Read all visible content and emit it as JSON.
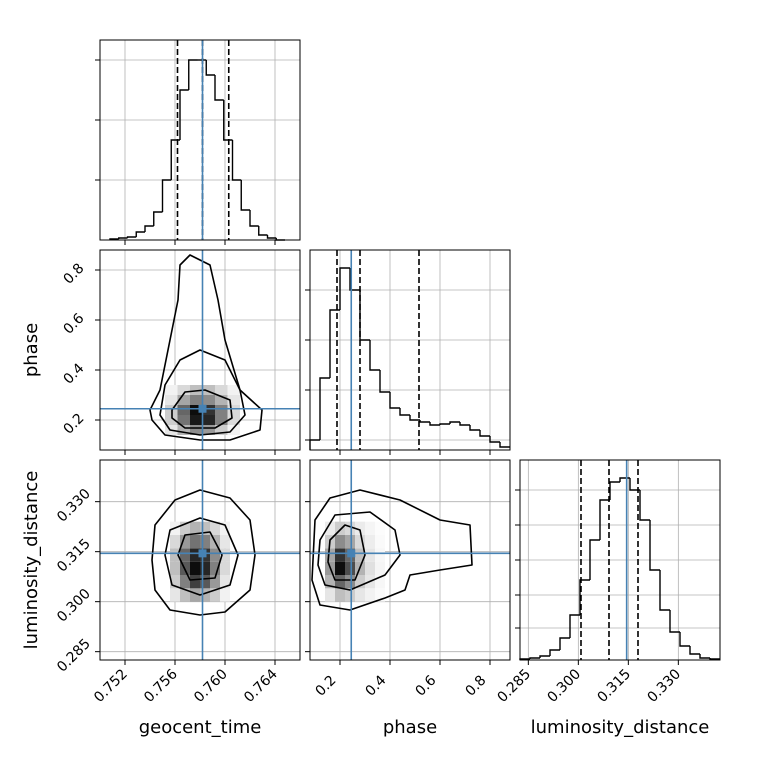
{
  "chart_data": {
    "type": "corner",
    "truth_color": "#4682b4",
    "hist_color": "#000000",
    "grid": true,
    "hist_ylim": [
      0,
      200
    ],
    "parameters": [
      {
        "label": "geocent_time",
        "lim": [
          0.75,
          0.766
        ],
        "ticks": [
          0.752,
          0.756,
          {
            "value": 0.76,
            "label": "0.760"
          },
          0.764
        ],
        "truth": 0.7582,
        "quantiles": [
          0.7562,
          0.7582,
          0.7603
        ],
        "hist_yticks": [
          60,
          120,
          180
        ],
        "hist": {
          "bins": [
            0.7508,
            0.7515,
            0.7522,
            0.7529,
            0.7536,
            0.7543,
            0.755,
            0.7557,
            0.7564,
            0.7571,
            0.7578,
            0.7585,
            0.7592,
            0.7599,
            0.7606,
            0.7613,
            0.762,
            0.7627,
            0.7634,
            0.7641,
            0.7648
          ],
          "counts": [
            1,
            2,
            3,
            8,
            14,
            28,
            60,
            100,
            150,
            180,
            180,
            165,
            140,
            100,
            60,
            30,
            14,
            5,
            2,
            0
          ]
        }
      },
      {
        "label": "phase",
        "lim": [
          0.08,
          0.88
        ],
        "ticks": [
          0.2,
          0.4,
          0.6,
          0.8
        ],
        "truth": 0.245,
        "quantiles": [
          0.188,
          0.28,
          0.516
        ],
        "hist_yticks": [
          10,
          60,
          110,
          160
        ],
        "hist": {
          "bins": [
            0.08,
            0.12,
            0.16,
            0.2,
            0.24,
            0.28,
            0.32,
            0.36,
            0.4,
            0.44,
            0.48,
            0.52,
            0.56,
            0.6,
            0.64,
            0.68,
            0.72,
            0.76,
            0.8,
            0.84,
            0.88
          ],
          "counts": [
            10,
            72,
            140,
            182,
            160,
            110,
            80,
            58,
            42,
            35,
            30,
            28,
            25,
            26,
            28,
            25,
            20,
            14,
            8,
            3
          ]
        }
      },
      {
        "label": "luminosity_distance",
        "lim": [
          0.2825,
          0.3425
        ],
        "ticks": [
          0.285,
          {
            "value": 0.3,
            "label": "0.300"
          },
          0.315,
          {
            "value": 0.33,
            "label": "0.330"
          }
        ],
        "truth": 0.3145,
        "quantiles": [
          0.3008,
          0.3092,
          0.3179
        ],
        "hist_yticks": [
          32,
          65,
          100,
          135,
          170
        ],
        "hist": {
          "bins": [
            0.2825,
            0.2855,
            0.2885,
            0.2915,
            0.2945,
            0.2975,
            0.3005,
            0.3035,
            0.3065,
            0.3095,
            0.3125,
            0.3155,
            0.3185,
            0.3215,
            0.3245,
            0.3275,
            0.3305,
            0.3335,
            0.3365,
            0.3395,
            0.3425
          ],
          "counts": [
            1,
            2,
            4,
            10,
            22,
            45,
            80,
            120,
            160,
            178,
            182,
            170,
            140,
            90,
            50,
            28,
            14,
            6,
            2,
            1
          ]
        }
      }
    ],
    "pairs": [
      {
        "x": 0,
        "y": 1,
        "density": {
          "x_edges": [
            0.7552,
            0.7562,
            0.7572,
            0.7582,
            0.7592,
            0.7602,
            0.7612
          ],
          "y_edges": [
            0.14,
            0.18,
            0.22,
            0.26,
            0.3,
            0.34
          ],
          "values": [
            [
              0.1,
              0.3,
              0.45,
              0.4,
              0.2,
              0.05
            ],
            [
              0.2,
              0.55,
              0.9,
              0.85,
              0.5,
              0.15
            ],
            [
              0.2,
              0.6,
              0.95,
              0.8,
              0.5,
              0.15
            ],
            [
              0.1,
              0.35,
              0.5,
              0.45,
              0.3,
              0.1
            ],
            [
              0.05,
              0.15,
              0.25,
              0.25,
              0.15,
              0.05
            ]
          ]
        },
        "contours": [
          {
            "x": [
              0.75416,
              0.754,
              0.7548,
              0.7556,
              0.75624,
              0.7564,
              0.7572,
              0.7588,
              0.75944,
              0.76,
              0.7612,
              0.76296,
              0.7628,
              0.7604,
              0.758,
              0.7552
            ],
            "y": [
              0.2,
              0.24,
              0.32,
              0.52,
              0.68,
              0.82,
              0.86,
              0.82,
              0.68,
              0.52,
              0.32,
              0.24,
              0.16,
              0.12,
              0.12,
              0.14
            ]
          },
          {
            "x": [
              0.7548,
              0.7552,
              0.7564,
              0.758,
              0.76,
              0.7612,
              0.7616,
              0.7604,
              0.758,
              0.7556
            ],
            "y": [
              0.22,
              0.34,
              0.44,
              0.48,
              0.44,
              0.32,
              0.22,
              0.152,
              0.14,
              0.16
            ]
          },
          {
            "x": [
              0.75576,
              0.7568,
              0.7584,
              0.7604,
              0.76056,
              0.7592,
              0.7568,
              0.75576
            ],
            "y": [
              0.24,
              0.312,
              0.32,
              0.28,
              0.208,
              0.168,
              0.168,
              0.208
            ]
          }
        ]
      },
      {
        "x": 0,
        "y": 2,
        "density": {
          "x_edges": [
            0.7556,
            0.7564,
            0.7572,
            0.758,
            0.7588,
            0.7596,
            0.7604
          ],
          "y_edges": [
            0.3,
            0.304,
            0.308,
            0.312,
            0.316,
            0.32,
            0.324
          ],
          "values": [
            [
              0.1,
              0.25,
              0.35,
              0.3,
              0.2,
              0.05
            ],
            [
              0.2,
              0.5,
              0.75,
              0.65,
              0.4,
              0.1
            ],
            [
              0.25,
              0.65,
              0.95,
              0.85,
              0.5,
              0.15
            ],
            [
              0.25,
              0.6,
              0.85,
              0.8,
              0.45,
              0.15
            ],
            [
              0.15,
              0.4,
              0.55,
              0.5,
              0.3,
              0.1
            ],
            [
              0.05,
              0.2,
              0.3,
              0.25,
              0.15,
              0.05
            ]
          ]
        },
        "contours": [
          {
            "x": [
              0.75416,
              0.7544,
              0.756,
              0.758,
              0.7604,
              0.762,
              0.7624,
              0.762,
              0.76,
              0.758,
              0.7556,
              0.7544
            ],
            "y": [
              0.3125,
              0.323,
              0.3305,
              0.3335,
              0.3311,
              0.3245,
              0.314,
              0.3035,
              0.2969,
              0.296,
              0.2975,
              0.3035
            ]
          },
          {
            "x": [
              0.7552,
              0.7556,
              0.758,
              0.76,
              0.76104,
              0.7604,
              0.758,
              0.75576
            ],
            "y": [
              0.314,
              0.3215,
              0.3251,
              0.323,
              0.314,
              0.305,
              0.302,
              0.305
            ]
          },
          {
            "x": [
              0.75624,
              0.7568,
              0.7588,
              0.75976,
              0.7592,
              0.7572
            ],
            "y": [
              0.314,
              0.32,
              0.3209,
              0.314,
              0.3071,
              0.3065
            ]
          }
        ]
      },
      {
        "x": 1,
        "y": 2,
        "density": {
          "x_edges": [
            0.14,
            0.18,
            0.22,
            0.26,
            0.3,
            0.34,
            0.38
          ],
          "y_edges": [
            0.3,
            0.304,
            0.308,
            0.312,
            0.316,
            0.32,
            0.324
          ],
          "values": [
            [
              0.1,
              0.25,
              0.2,
              0.1,
              0.05,
              0.02
            ],
            [
              0.3,
              0.6,
              0.45,
              0.2,
              0.1,
              0.03
            ],
            [
              0.4,
              0.95,
              0.7,
              0.3,
              0.12,
              0.04
            ],
            [
              0.35,
              0.8,
              0.6,
              0.25,
              0.1,
              0.03
            ],
            [
              0.2,
              0.45,
              0.35,
              0.15,
              0.07,
              0.02
            ],
            [
              0.08,
              0.2,
              0.15,
              0.08,
              0.04,
              0.01
            ]
          ]
        },
        "contours": [
          {
            "x": [
              0.1,
              0.16,
              0.28,
              0.44,
              0.6,
              0.72,
              0.728,
              0.6,
              0.48,
              0.46,
              0.38,
              0.24,
              0.12,
              0.088
            ],
            "y": [
              0.3245,
              0.3311,
              0.3335,
              0.3305,
              0.3245,
              0.323,
              0.311,
              0.3095,
              0.308,
              0.3035,
              0.3011,
              0.2975,
              0.299,
              0.3065
            ]
          },
          {
            "x": [
              0.12,
              0.18,
              0.32,
              0.42,
              0.44,
              0.38,
              0.24,
              0.14,
              0.112
            ],
            "y": [
              0.3185,
              0.326,
              0.3269,
              0.3215,
              0.314,
              0.308,
              0.3035,
              0.305,
              0.311
            ]
          },
          {
            "x": [
              0.16,
              0.22,
              0.28,
              0.3,
              0.26,
              0.18,
              0.152
            ],
            "y": [
              0.3185,
              0.323,
              0.3215,
              0.314,
              0.3065,
              0.3065,
              0.3119
            ]
          }
        ]
      }
    ]
  }
}
